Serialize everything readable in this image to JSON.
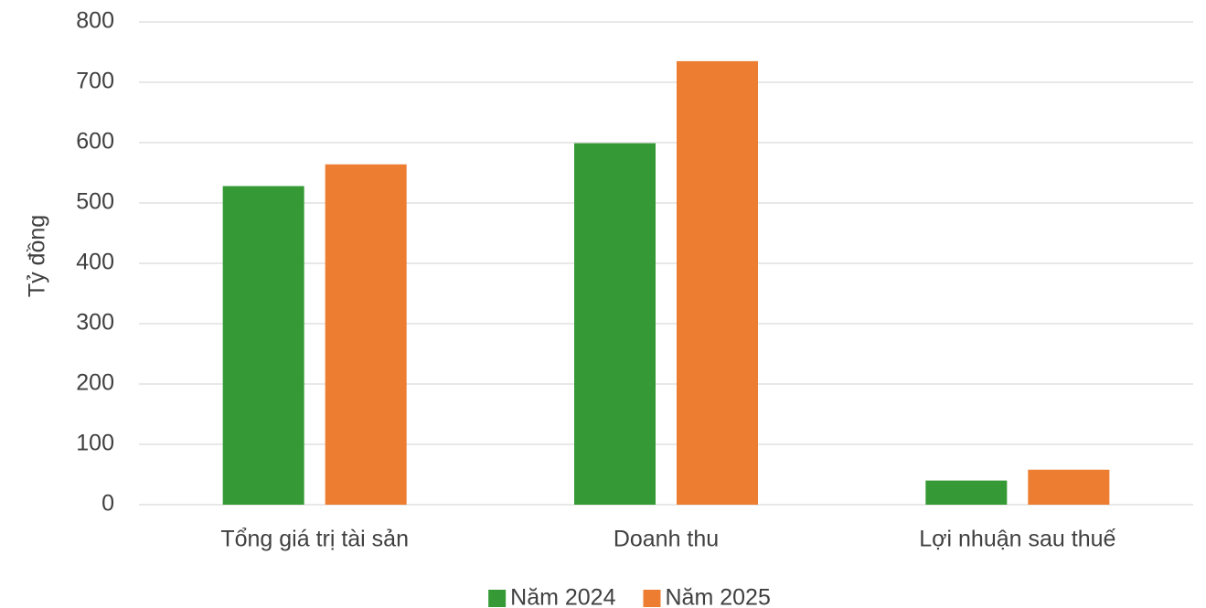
{
  "chart_data": {
    "type": "bar",
    "y_label": "Tỷ đồng",
    "categories": [
      "Tổng giá trị tài sản",
      "Doanh thu",
      "Lợi nhuận sau thuế"
    ],
    "series": [
      {
        "name": "Năm 2024",
        "color": "#359a35",
        "values": [
          528,
          599,
          40
        ]
      },
      {
        "name": "Năm 2025",
        "color": "#ed7d31",
        "values": [
          564,
          735,
          58
        ]
      }
    ],
    "ylim": [
      0,
      800
    ],
    "yticks": [
      0,
      100,
      200,
      300,
      400,
      500,
      600,
      700,
      800
    ],
    "grid": true,
    "legend": "bottom"
  }
}
